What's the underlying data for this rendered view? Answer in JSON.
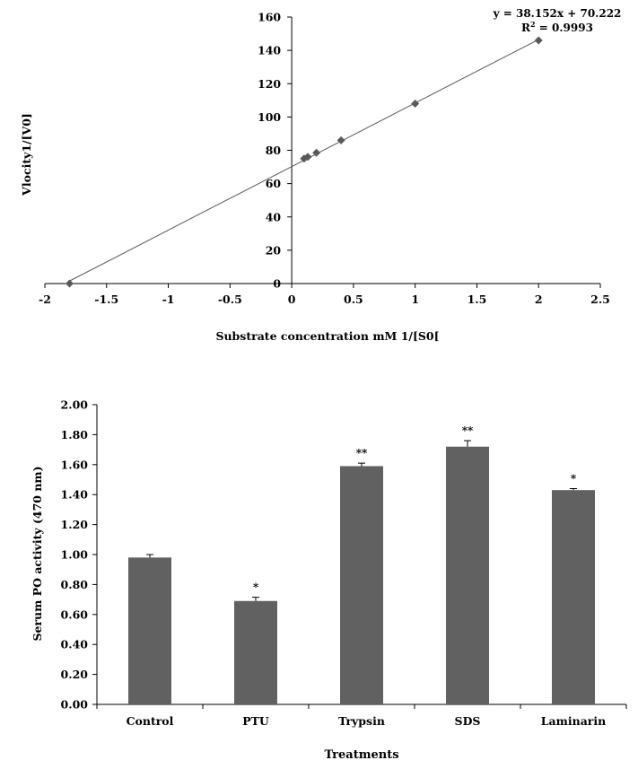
{
  "chart_data": [
    {
      "type": "scatter",
      "title": "",
      "xlabel": "Substrate concentration mM 1/[S0[",
      "ylabel": "Vlocity1/[V0]",
      "xlim": [
        -2,
        2.5
      ],
      "ylim": [
        0,
        160
      ],
      "x_ticks": [
        "-2",
        "-1.5",
        "-1",
        "-0.5",
        "0",
        "0.5",
        "1",
        "1.5",
        "2",
        "2.5"
      ],
      "y_ticks": [
        "0",
        "20",
        "40",
        "60",
        "80",
        "100",
        "120",
        "140",
        "160"
      ],
      "points": [
        {
          "x": -1.8,
          "y": 0
        },
        {
          "x": 0.1,
          "y": 75
        },
        {
          "x": 0.13,
          "y": 76
        },
        {
          "x": 0.2,
          "y": 78.5
        },
        {
          "x": 0.4,
          "y": 86
        },
        {
          "x": 1.0,
          "y": 108
        },
        {
          "x": 2.0,
          "y": 146
        }
      ],
      "trendline": {
        "slope": 38.152,
        "intercept": 70.222,
        "x_range": [
          -1.8,
          2.0
        ]
      },
      "equation_text": "y = 38.152x + 70.222",
      "r2_prefix": "R",
      "r2_sup": "2",
      "r2_suffix": " = 0.9993",
      "marker_color": "#595959",
      "line_color": "#595959",
      "grid": false
    },
    {
      "type": "bar",
      "title": "",
      "xlabel": "Treatments",
      "ylabel": "Serum PO activity (470 nm)",
      "ylim": [
        0,
        2.0
      ],
      "y_ticks": [
        "0.00",
        "0.20",
        "0.40",
        "0.60",
        "0.80",
        "1.00",
        "1.20",
        "1.40",
        "1.60",
        "1.80",
        "2.00"
      ],
      "categories": [
        "Control",
        "PTU",
        "Trypsin",
        "SDS",
        "Laminarin"
      ],
      "values": [
        0.98,
        0.69,
        1.59,
        1.72,
        1.43
      ],
      "errors": [
        0.02,
        0.025,
        0.02,
        0.04,
        0.01
      ],
      "significance": [
        "",
        "*",
        "**",
        "**",
        "*"
      ],
      "bar_color": "#616161",
      "grid": false
    }
  ]
}
